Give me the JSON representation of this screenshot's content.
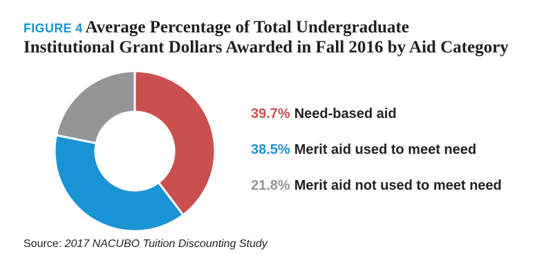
{
  "figure": {
    "label": "FIGURE 4",
    "title_line1": "Average Percentage of Total Undergraduate",
    "title_line2": "Institutional Grant Dollars Awarded in Fall 2016 by Aid Category"
  },
  "colors": {
    "label_blue": "#1a93d5",
    "text": "#231f20"
  },
  "chart_data": {
    "type": "pie",
    "donut": true,
    "series": [
      {
        "name": "Need-based aid",
        "display_value": "39.7%",
        "value": 39.7,
        "color": "#c9504f"
      },
      {
        "name": "Merit aid used to meet need",
        "display_value": "38.5%",
        "value": 38.5,
        "color": "#1a93d5"
      },
      {
        "name": "Merit aid not used to meet need",
        "display_value": "21.8%",
        "value": 21.8,
        "color": "#939598"
      }
    ]
  },
  "source": {
    "prefix": "Source: ",
    "title": "2017 NACUBO Tuition Discounting Study"
  }
}
